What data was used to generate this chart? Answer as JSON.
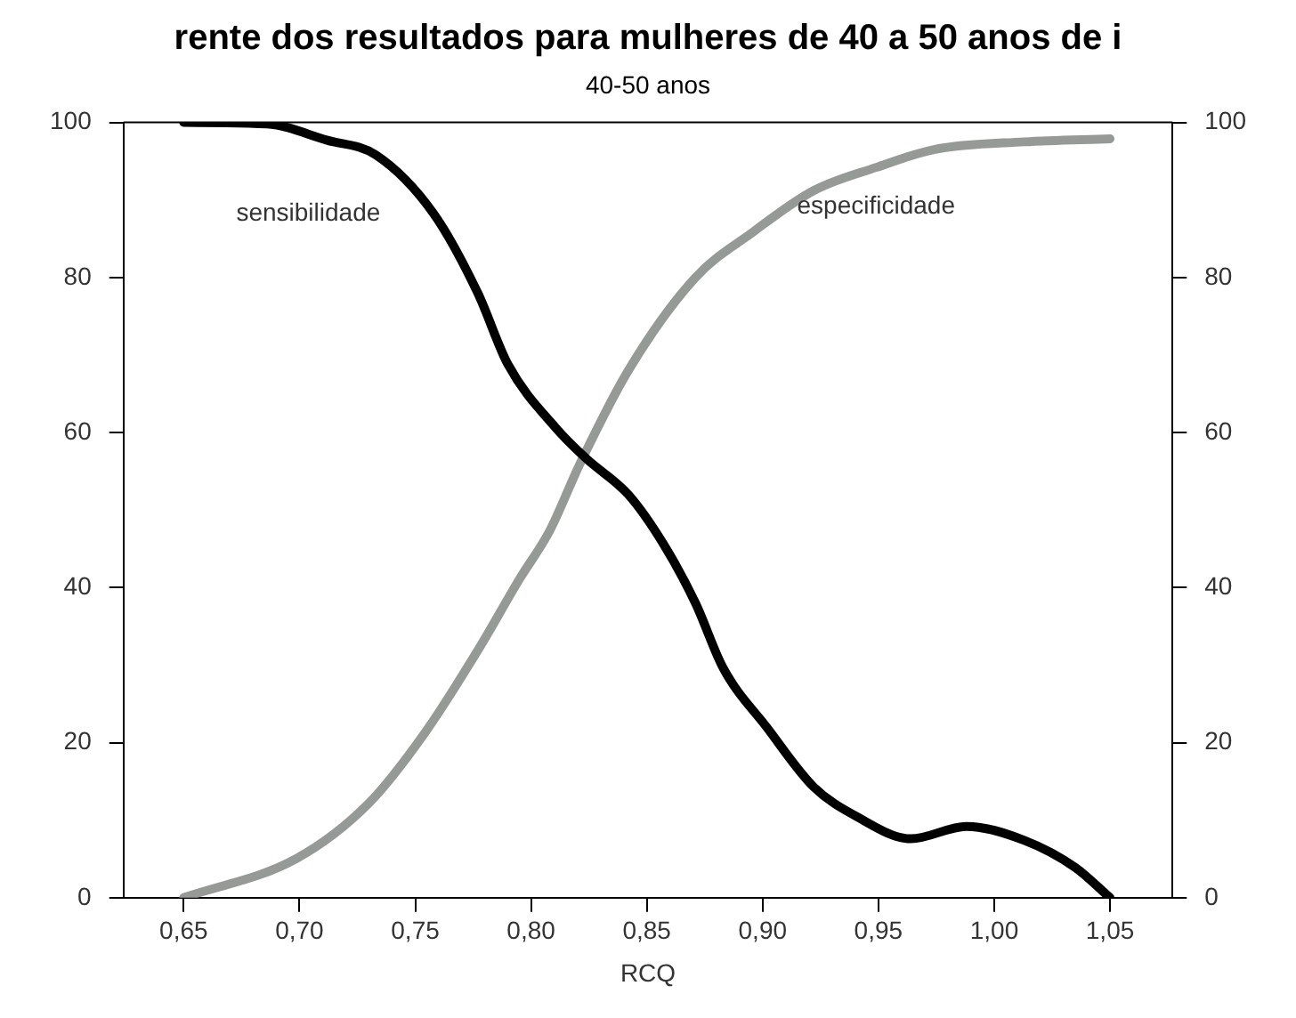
{
  "chart_data": {
    "type": "line",
    "title": "rente dos resultados para mulheres de 40 a 50 anos de i",
    "subtitle": "40-50 anos",
    "xlabel": "RCQ",
    "xlim": [
      0.624,
      1.077
    ],
    "xticks": [
      {
        "value": 0.65,
        "label": "0,65"
      },
      {
        "value": 0.7,
        "label": "0,70"
      },
      {
        "value": 0.75,
        "label": "0,75"
      },
      {
        "value": 0.8,
        "label": "0,80"
      },
      {
        "value": 0.85,
        "label": "0,85"
      },
      {
        "value": 0.9,
        "label": "0,90"
      },
      {
        "value": 0.95,
        "label": "0,95"
      },
      {
        "value": 1.0,
        "label": "1,00"
      },
      {
        "value": 1.05,
        "label": "1,05"
      }
    ],
    "ylim": [
      0,
      100
    ],
    "yticks": [
      0,
      20,
      40,
      60,
      80,
      100
    ],
    "y2lim": [
      0,
      100
    ],
    "y2ticks": [
      0,
      20,
      40,
      60,
      80,
      100
    ],
    "grid": false,
    "legend": false,
    "marker": "none",
    "line_style": "solid",
    "series": [
      {
        "name": "sensibilidade",
        "color": "#000000",
        "x": [
          0.65,
          0.686,
          0.712,
          0.733,
          0.758,
          0.777,
          0.79,
          0.811,
          0.824,
          0.842,
          0.857,
          0.871,
          0.883,
          0.902,
          0.922,
          0.941,
          0.964,
          0.988,
          1.013,
          1.035,
          1.05
        ],
        "values": [
          100,
          99.8,
          97.7,
          95.8,
          88.2,
          78,
          68.8,
          60.5,
          56.6,
          52,
          45.7,
          38,
          29.6,
          21.9,
          14.3,
          10.4,
          7.6,
          9.2,
          7.4,
          3.9,
          0
        ]
      },
      {
        "name": "especificidade",
        "color": "#969a96",
        "x": [
          0.65,
          0.699,
          0.73,
          0.754,
          0.777,
          0.795,
          0.808,
          0.821,
          0.842,
          0.871,
          0.896,
          0.922,
          0.949,
          0.974,
          1.013,
          1.05
        ],
        "values": [
          0,
          5.1,
          12.2,
          21.2,
          31.9,
          41.1,
          47.3,
          55.9,
          68,
          80,
          85.9,
          91.2,
          94.2,
          96.5,
          97.5,
          97.9
        ]
      }
    ]
  }
}
